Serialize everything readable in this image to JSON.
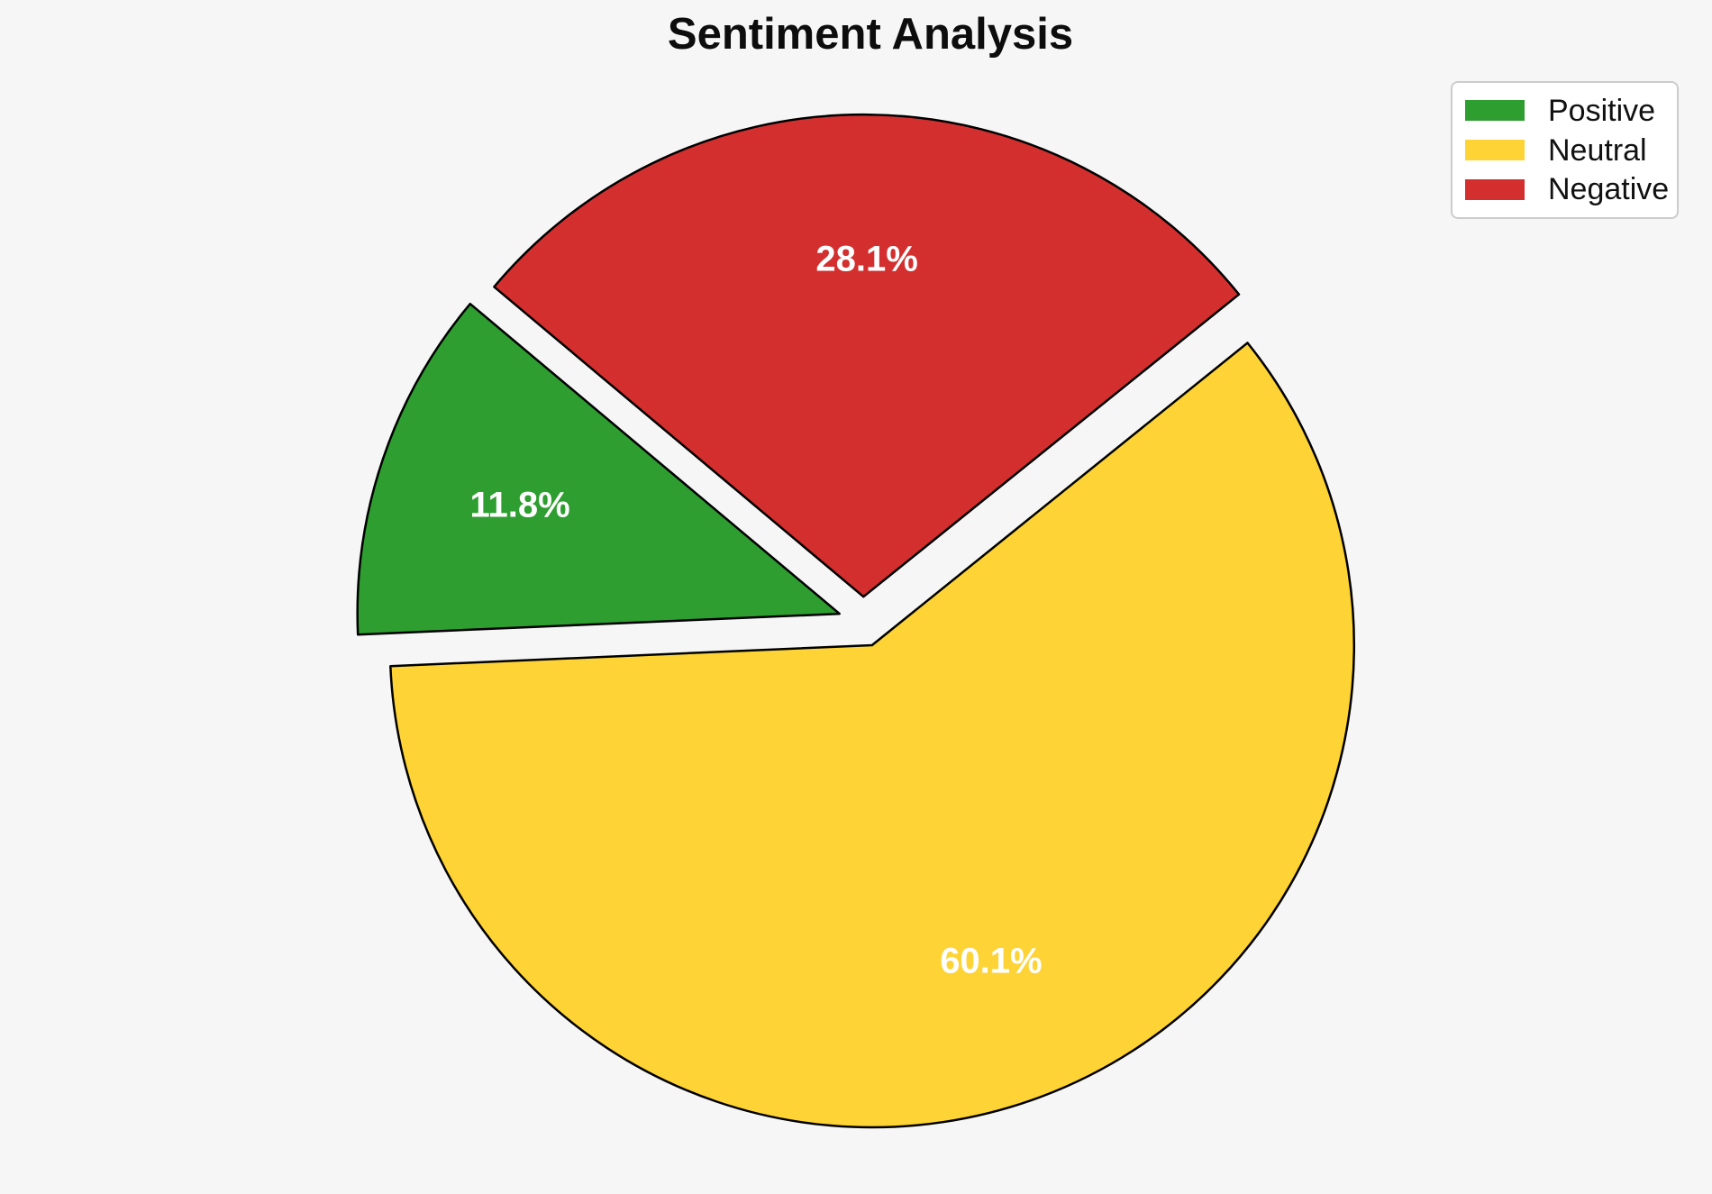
{
  "title": "Sentiment Analysis",
  "background_color": "#f6f6f7",
  "chart_data": {
    "type": "pie",
    "title": "Sentiment Analysis",
    "labels": [
      "Positive",
      "Neutral",
      "Negative"
    ],
    "values": [
      11.8,
      60.1,
      28.1
    ],
    "percent_labels": [
      "11.8%",
      "60.1%",
      "28.1%"
    ],
    "colors": [
      "#2e9e30",
      "#fdd335",
      "#d32f2f"
    ],
    "edge_color": "#000000",
    "percent_label_color": "#ffffff",
    "start_angle": 140,
    "counterclockwise": true,
    "explode": [
      0.052,
      0.052,
      0.052
    ],
    "pct_distance": 0.7,
    "legend_position": "upper right",
    "legend": {
      "items": [
        "Positive",
        "Neutral",
        "Negative"
      ]
    }
  }
}
